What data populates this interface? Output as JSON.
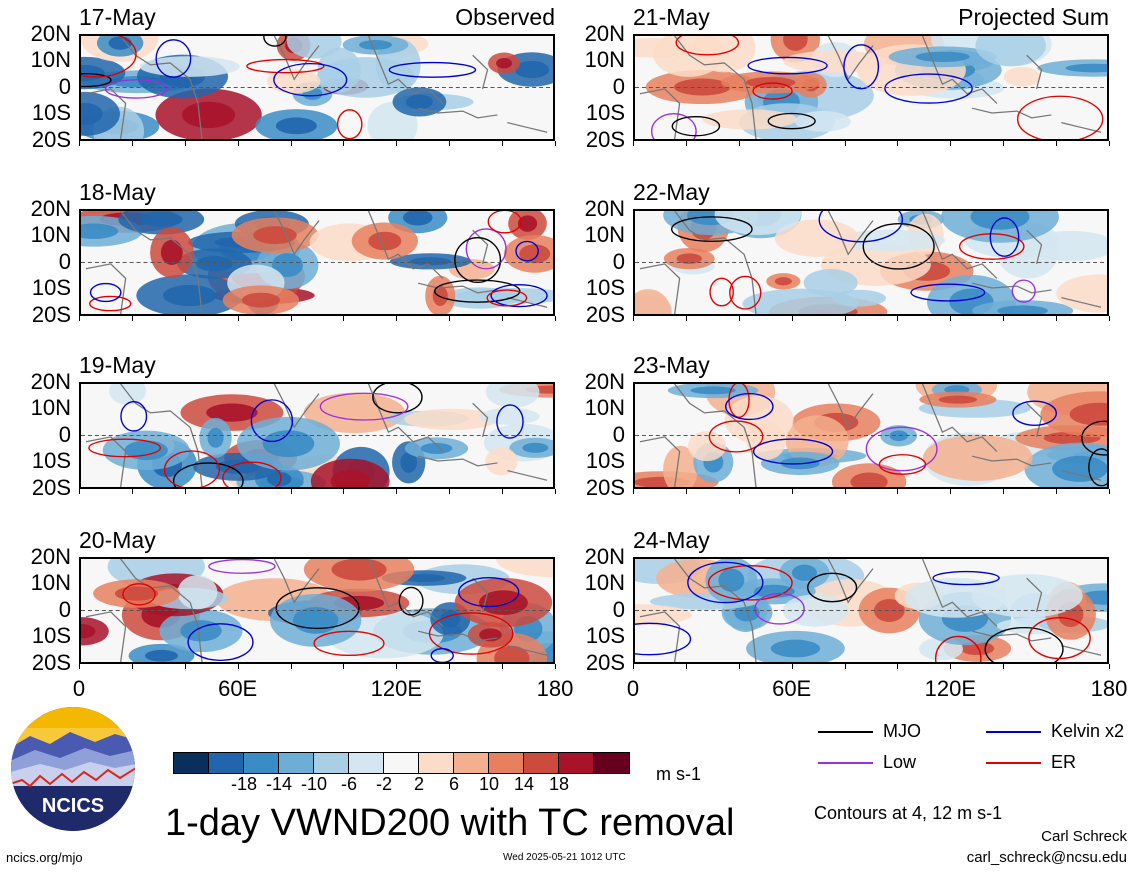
{
  "labels": {
    "observed": "Observed",
    "projected": "Projected Sum"
  },
  "lat_ticks": [
    "20N",
    "10N",
    "0",
    "10S",
    "20S"
  ],
  "lon_ticks": [
    "0",
    "60E",
    "120E",
    "180"
  ],
  "left_panels": [
    {
      "date": "17-May"
    },
    {
      "date": "18-May"
    },
    {
      "date": "19-May"
    },
    {
      "date": "20-May"
    }
  ],
  "right_panels": [
    {
      "date": "21-May"
    },
    {
      "date": "22-May"
    },
    {
      "date": "23-May"
    },
    {
      "date": "24-May"
    }
  ],
  "colorbar": {
    "colors": [
      "#0b2f5c",
      "#2166ac",
      "#3a8cc4",
      "#6eaed6",
      "#a8cfe6",
      "#d4e6f1",
      "#f7f7f7",
      "#fbdcc8",
      "#f4b08e",
      "#e6805f",
      "#cc4a3e",
      "#a8132a",
      "#67001f"
    ],
    "labels": [
      "-18",
      "-14",
      "-10",
      "-6",
      "-2",
      "2",
      "6",
      "10",
      "14",
      "18"
    ],
    "units": "m s-1"
  },
  "title": "1-day VWND200 with TC removal",
  "legend": [
    {
      "label": "MJO",
      "color": "#000000"
    },
    {
      "label": "Kelvin x2",
      "color": "#0000cc"
    },
    {
      "label": "Low",
      "color": "#9b30d9"
    },
    {
      "label": "ER",
      "color": "#e00000"
    }
  ],
  "contours_note": "Contours at 4, 12 m s-1",
  "credit": {
    "name": "Carl Schreck",
    "email": "carl_schreck@ncsu.edu"
  },
  "footer": {
    "url": "ncics.org/mjo",
    "timestamp": "Wed 2025-05-21 1012 UTC"
  },
  "logo_text": "NCICS"
}
